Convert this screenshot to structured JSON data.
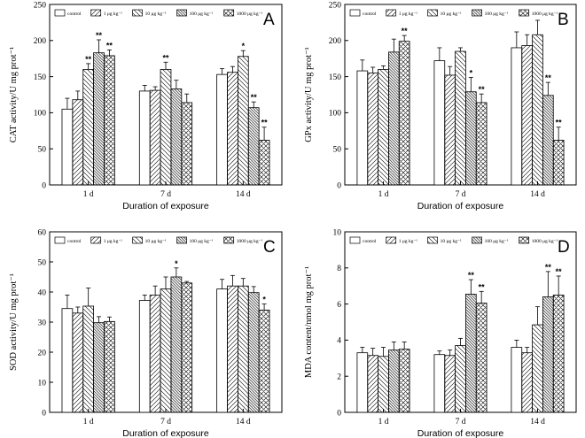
{
  "legend": [
    "control",
    "1 μg kg⁻¹",
    "10 μg kg⁻¹",
    "100 μg kg⁻¹",
    "1000 μg kg⁻¹"
  ],
  "chart_data": [
    {
      "type": "bar",
      "panel": "A",
      "title": "",
      "ylabel": "CAT activity/U mg prot⁻¹",
      "xlabel": "Duration of exposure",
      "categories": [
        "1 d",
        "7 d",
        "14 d"
      ],
      "ylim": [
        0,
        250
      ],
      "yticks": [
        0,
        50,
        100,
        150,
        200,
        250
      ],
      "series": [
        {
          "name": "control",
          "values": [
            105,
            130,
            153
          ],
          "errors": [
            15,
            8,
            8
          ]
        },
        {
          "name": "1 μg kg⁻¹",
          "values": [
            118,
            131,
            156
          ],
          "errors": [
            12,
            5,
            8
          ]
        },
        {
          "name": "10 μg kg⁻¹",
          "values": [
            160,
            160,
            178
          ],
          "errors": [
            8,
            10,
            8
          ]
        },
        {
          "name": "100 μg kg⁻¹",
          "values": [
            183,
            133,
            107
          ],
          "errors": [
            18,
            12,
            8
          ]
        },
        {
          "name": "1000 μg kg⁻¹",
          "values": [
            179,
            114,
            62
          ],
          "errors": [
            8,
            12,
            18
          ]
        }
      ],
      "significance": [
        [
          "",
          "",
          "**",
          "**",
          "**"
        ],
        [
          "",
          "",
          "**",
          "",
          ""
        ],
        [
          "",
          "",
          "*",
          "**",
          "**"
        ]
      ]
    },
    {
      "type": "bar",
      "panel": "B",
      "title": "",
      "ylabel": "GPx activity/U mg prot⁻¹",
      "xlabel": "Duration of exposure",
      "categories": [
        "1 d",
        "7 d",
        "14 d"
      ],
      "ylim": [
        0,
        250
      ],
      "yticks": [
        0,
        50,
        100,
        150,
        200,
        250
      ],
      "series": [
        {
          "name": "control",
          "values": [
            158,
            172,
            190
          ],
          "errors": [
            15,
            18,
            22
          ]
        },
        {
          "name": "1 μg kg⁻¹",
          "values": [
            155,
            152,
            193
          ],
          "errors": [
            8,
            12,
            15
          ]
        },
        {
          "name": "10 μg kg⁻¹",
          "values": [
            160,
            185,
            208
          ],
          "errors": [
            5,
            5,
            20
          ]
        },
        {
          "name": "100 μg kg⁻¹",
          "values": [
            184,
            129,
            124
          ],
          "errors": [
            18,
            20,
            18
          ]
        },
        {
          "name": "1000 μg kg⁻¹",
          "values": [
            199,
            114,
            62
          ],
          "errors": [
            8,
            12,
            18
          ]
        }
      ],
      "significance": [
        [
          "",
          "",
          "",
          "",
          "**"
        ],
        [
          "",
          "",
          "",
          "*",
          "**"
        ],
        [
          "",
          "",
          "",
          "**",
          "**"
        ]
      ]
    },
    {
      "type": "bar",
      "panel": "C",
      "title": "",
      "ylabel": "SOD activity/U mg prot⁻¹",
      "xlabel": "Duration of exposure",
      "categories": [
        "1 d",
        "7 d",
        "14 d"
      ],
      "ylim": [
        0,
        60
      ],
      "yticks": [
        0,
        10,
        20,
        30,
        40,
        50,
        60
      ],
      "series": [
        {
          "name": "control",
          "values": [
            34.5,
            37.2,
            41.0
          ],
          "errors": [
            4.5,
            1.8,
            3.2
          ]
        },
        {
          "name": "1 μg kg⁻¹",
          "values": [
            33.0,
            39.0,
            42.0
          ],
          "errors": [
            2.0,
            3.0,
            3.5
          ]
        },
        {
          "name": "10 μg kg⁻¹",
          "values": [
            35.3,
            41.0,
            42.0
          ],
          "errors": [
            6.0,
            4.0,
            2.5
          ]
        },
        {
          "name": "100 μg kg⁻¹",
          "values": [
            29.8,
            45.0,
            39.8
          ],
          "errors": [
            2.0,
            3.0,
            2.0
          ]
        },
        {
          "name": "1000 μg kg⁻¹",
          "values": [
            30.2,
            43.0,
            34.0
          ],
          "errors": [
            1.5,
            0.5,
            2.0
          ]
        }
      ],
      "significance": [
        [
          "",
          "",
          "",
          "",
          ""
        ],
        [
          "",
          "",
          "",
          "*",
          ""
        ],
        [
          "",
          "",
          "",
          "",
          "*"
        ]
      ]
    },
    {
      "type": "bar",
      "panel": "D",
      "title": "",
      "ylabel": "MDA content/nmol mg prot⁻¹",
      "xlabel": "Duration of exposure",
      "categories": [
        "1 d",
        "7 d",
        "14 d"
      ],
      "ylim": [
        0,
        10
      ],
      "yticks": [
        0,
        2,
        4,
        6,
        8,
        10
      ],
      "series": [
        {
          "name": "control",
          "values": [
            3.3,
            3.2,
            3.6
          ],
          "errors": [
            0.3,
            0.2,
            0.4
          ]
        },
        {
          "name": "1 μg kg⁻¹",
          "values": [
            3.15,
            3.15,
            3.3
          ],
          "errors": [
            0.4,
            0.3,
            0.3
          ]
        },
        {
          "name": "10 μg kg⁻¹",
          "values": [
            3.1,
            3.7,
            4.85
          ],
          "errors": [
            0.5,
            0.4,
            1.0
          ]
        },
        {
          "name": "100 μg kg⁻¹",
          "values": [
            3.45,
            6.55,
            6.4
          ],
          "errors": [
            0.45,
            0.8,
            1.4
          ]
        },
        {
          "name": "1000 μg kg⁻¹",
          "values": [
            3.5,
            6.05,
            6.5
          ],
          "errors": [
            0.4,
            0.65,
            1.05
          ]
        }
      ],
      "significance": [
        [
          "",
          "",
          "",
          "",
          ""
        ],
        [
          "",
          "",
          "",
          "**",
          "**"
        ],
        [
          "",
          "",
          "",
          "**",
          "**"
        ]
      ]
    }
  ]
}
